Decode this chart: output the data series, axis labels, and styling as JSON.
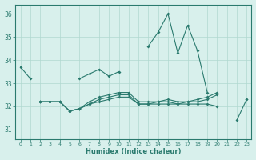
{
  "xlabel": "Humidex (Indice chaleur)",
  "x": [
    0,
    1,
    2,
    3,
    4,
    5,
    6,
    7,
    8,
    9,
    10,
    11,
    12,
    13,
    14,
    15,
    16,
    17,
    18,
    19,
    20,
    21,
    22,
    23
  ],
  "line1": [
    33.7,
    33.2,
    null,
    null,
    null,
    null,
    33.2,
    33.4,
    33.6,
    33.3,
    33.5,
    null,
    null,
    34.6,
    35.2,
    36.0,
    34.3,
    35.5,
    34.4,
    32.6,
    null,
    null,
    null,
    null
  ],
  "line2": [
    null,
    null,
    32.2,
    32.2,
    32.2,
    31.8,
    31.9,
    32.1,
    32.2,
    32.3,
    32.4,
    32.4,
    32.1,
    32.1,
    32.1,
    32.1,
    32.1,
    32.1,
    32.1,
    32.1,
    32.0,
    null,
    31.4,
    32.3
  ],
  "line3": [
    null,
    null,
    32.2,
    32.2,
    32.2,
    31.8,
    31.9,
    32.1,
    32.3,
    32.4,
    32.5,
    32.5,
    32.1,
    32.1,
    32.2,
    32.2,
    32.1,
    32.2,
    32.2,
    32.3,
    32.5,
    null,
    null,
    32.3
  ],
  "line4": [
    null,
    null,
    32.2,
    32.2,
    32.2,
    31.8,
    31.9,
    32.2,
    32.4,
    32.5,
    32.6,
    32.6,
    32.2,
    32.2,
    32.2,
    32.3,
    32.2,
    32.2,
    32.3,
    32.4,
    32.6,
    null,
    null,
    null
  ],
  "ylim": [
    30.6,
    36.4
  ],
  "yticks": [
    31,
    32,
    33,
    34,
    35,
    36
  ],
  "color": "#2a7a6e",
  "bg_color": "#d8f0ec",
  "grid_color": "#b0d8d0"
}
